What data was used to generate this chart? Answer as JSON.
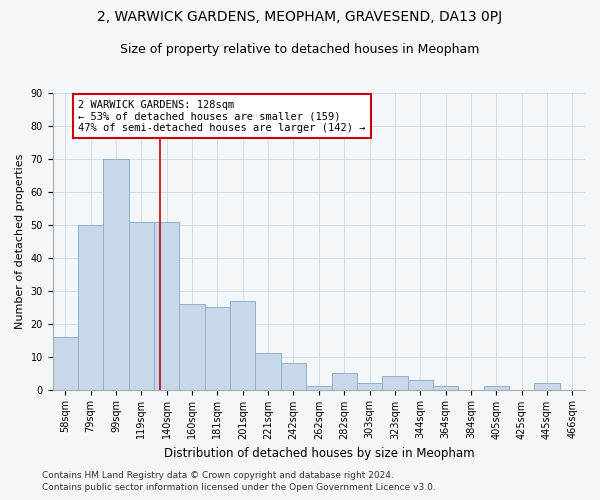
{
  "title": "2, WARWICK GARDENS, MEOPHAM, GRAVESEND, DA13 0PJ",
  "subtitle": "Size of property relative to detached houses in Meopham",
  "xlabel": "Distribution of detached houses by size in Meopham",
  "ylabel": "Number of detached properties",
  "categories": [
    "58sqm",
    "79sqm",
    "99sqm",
    "119sqm",
    "140sqm",
    "160sqm",
    "181sqm",
    "201sqm",
    "221sqm",
    "242sqm",
    "262sqm",
    "282sqm",
    "303sqm",
    "323sqm",
    "344sqm",
    "364sqm",
    "384sqm",
    "405sqm",
    "425sqm",
    "445sqm",
    "466sqm"
  ],
  "values": [
    16,
    50,
    70,
    51,
    51,
    26,
    25,
    27,
    11,
    8,
    1,
    5,
    2,
    4,
    3,
    1,
    0,
    1,
    0,
    2,
    0
  ],
  "bar_color": "#c8d8ea",
  "bar_edge_color": "#8ab4cc",
  "vline_x_index": 3.75,
  "vline_color": "#cc0000",
  "annotation_text": "2 WARWICK GARDENS: 128sqm\n← 53% of detached houses are smaller (159)\n47% of semi-detached houses are larger (142) →",
  "annotation_box_color": "#ffffff",
  "annotation_box_edge": "#cc0000",
  "ylim": [
    0,
    90
  ],
  "yticks": [
    0,
    10,
    20,
    30,
    40,
    50,
    60,
    70,
    80,
    90
  ],
  "background_color": "#f4f7fa",
  "plot_bg_color": "#f4f7fa",
  "grid_color": "#d0d8e0",
  "footer_line1": "Contains HM Land Registry data © Crown copyright and database right 2024.",
  "footer_line2": "Contains public sector information licensed under the Open Government Licence v3.0.",
  "title_fontsize": 10,
  "subtitle_fontsize": 9,
  "xlabel_fontsize": 8.5,
  "ylabel_fontsize": 8,
  "tick_fontsize": 7,
  "annotation_fontsize": 7.5,
  "footer_fontsize": 6.5
}
